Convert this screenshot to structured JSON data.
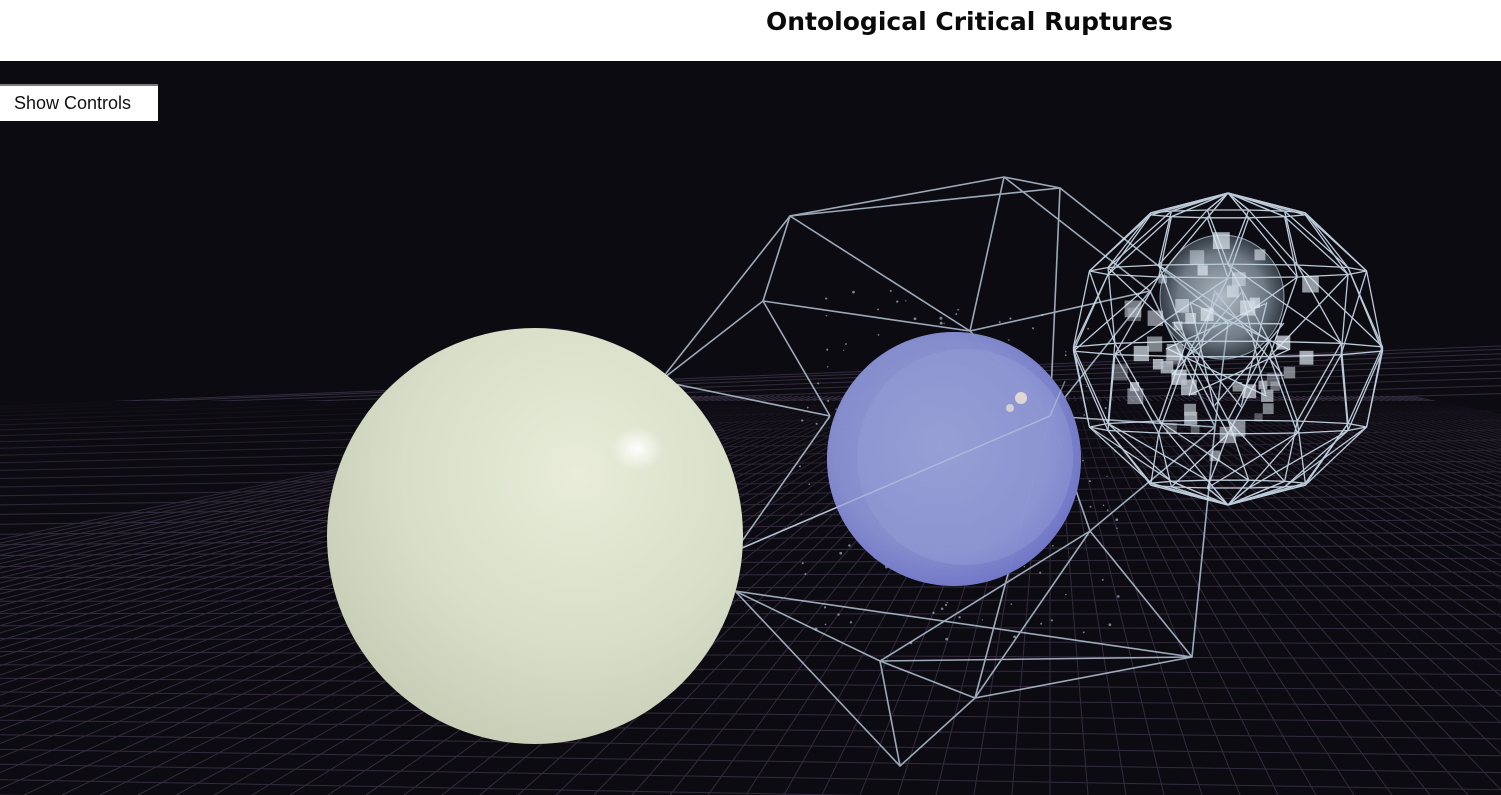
{
  "page": {
    "title": "Ontological Critical Ruptures"
  },
  "controls": {
    "toggle_label": "Show Controls"
  },
  "scene": {
    "background_color": "#0d0b12",
    "grid_color": "#3a3145",
    "objects": [
      {
        "name": "cream-sphere",
        "color": "#dfe3cc"
      },
      {
        "name": "blue-sphere",
        "color": "#8a92d6"
      },
      {
        "name": "wireframe-icosahedron",
        "color": "#b6c6d6"
      },
      {
        "name": "wireframe-geodesic-sphere",
        "color": "#c8dceb"
      }
    ]
  }
}
